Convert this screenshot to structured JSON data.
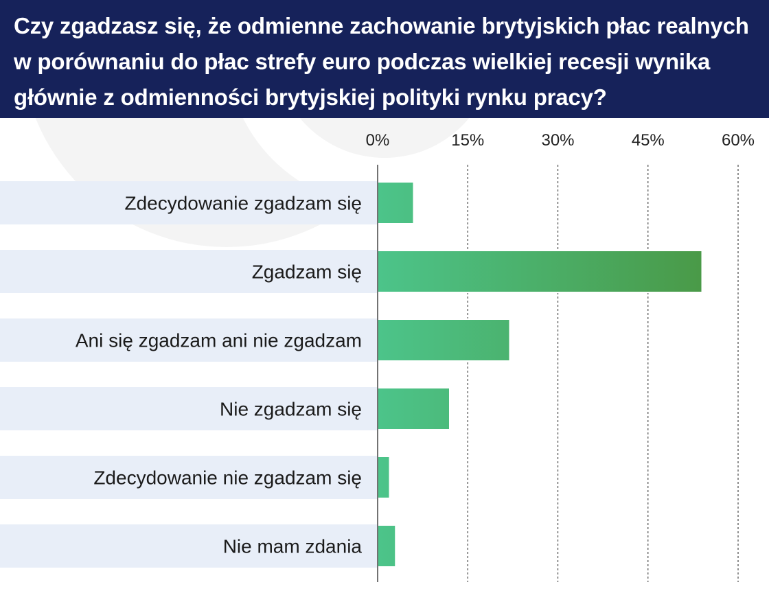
{
  "chart_data": {
    "type": "bar",
    "orientation": "horizontal",
    "title": "Czy zgadzasz się, że odmienne zachowanie brytyjskich płac realnych w porównaniu do płac strefy euro podczas wielkiej recesji wynika głównie z odmienności brytyjskiej polityki rynku pracy?",
    "categories": [
      "Zdecydowanie zgadzam się",
      "Zgadzam się",
      "Ani się zgadzam ani nie zgadzam",
      "Nie zgadzam się",
      "Zdecydowanie nie zgadzam się",
      "Nie mam zdania"
    ],
    "values": [
      6,
      54,
      22,
      12,
      2,
      3
    ],
    "xlim": [
      0,
      60
    ],
    "ticks": [
      0,
      15,
      30,
      45,
      60
    ],
    "tick_labels": [
      "0%",
      "15%",
      "30%",
      "45%",
      "60%"
    ],
    "grid": true,
    "colors": {
      "banner": "#16225a",
      "bar_start": "#4cc48a",
      "bar_end": "#4a9a48",
      "row_band": "#e8eef8",
      "bg_decor": "#f4f4f4"
    }
  }
}
